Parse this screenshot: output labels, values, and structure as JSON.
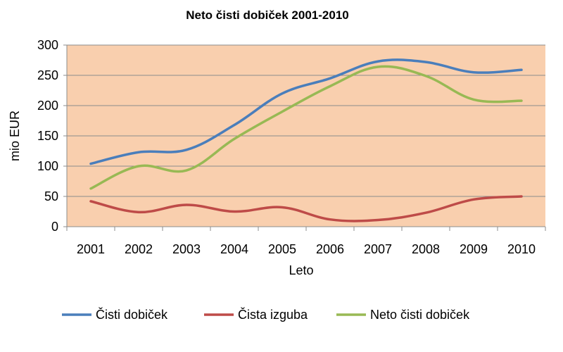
{
  "chart_data": {
    "type": "line",
    "title": "Neto čisti dobiček 2001-2010",
    "xlabel": "Leto",
    "ylabel": "mio EUR",
    "categories": [
      "2001",
      "2002",
      "2003",
      "2004",
      "2005",
      "2006",
      "2007",
      "2008",
      "2009",
      "2010"
    ],
    "y_ticks": [
      "0",
      "50",
      "100",
      "150",
      "200",
      "250",
      "300"
    ],
    "ylim": [
      0,
      300
    ],
    "grid": true,
    "legend_position": "bottom",
    "plot_background": "#f9cfae",
    "series": [
      {
        "name": "Čisti dobiček",
        "color": "#4a7ebb",
        "values": [
          104,
          123,
          127,
          168,
          220,
          245,
          273,
          272,
          255,
          259
        ]
      },
      {
        "name": "Čista izguba",
        "color": "#be4b48",
        "values": [
          42,
          24,
          36,
          25,
          32,
          12,
          11,
          23,
          45,
          50
        ]
      },
      {
        "name": "Neto čisti dobiček",
        "color": "#98b954",
        "values": [
          63,
          100,
          93,
          145,
          190,
          232,
          264,
          249,
          210,
          208
        ]
      }
    ]
  }
}
